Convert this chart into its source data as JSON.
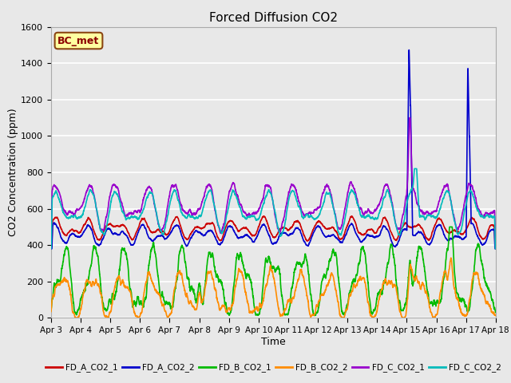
{
  "title": "Forced Diffusion CO2",
  "xlabel": "Time",
  "ylabel": "CO2 Concentration (ppm)",
  "ylim": [
    0,
    1600
  ],
  "yticks": [
    0,
    200,
    400,
    600,
    800,
    1000,
    1200,
    1400,
    1600
  ],
  "x_labels": [
    "Apr 3",
    "Apr 4",
    "Apr 5",
    "Apr 6",
    "Apr 7",
    "Apr 8",
    "Apr 9",
    "Apr 10",
    "Apr 11",
    "Apr 12",
    "Apr 13",
    "Apr 14",
    "Apr 15",
    "Apr 16",
    "Apr 17",
    "Apr 18"
  ],
  "annotation_text": "BC_met",
  "annotation_bbox_facecolor": "#FFFFA0",
  "annotation_bbox_edgecolor": "#8B4513",
  "annotation_text_color": "#8B0000",
  "series": [
    {
      "label": "FD_A_CO2_1",
      "color": "#CC0000",
      "lw": 1.2
    },
    {
      "label": "FD_A_CO2_2",
      "color": "#0000CC",
      "lw": 1.2
    },
    {
      "label": "FD_B_CO2_1",
      "color": "#00BB00",
      "lw": 1.2
    },
    {
      "label": "FD_B_CO2_2",
      "color": "#FF8C00",
      "lw": 1.2
    },
    {
      "label": "FD_C_CO2_1",
      "color": "#9900CC",
      "lw": 1.2
    },
    {
      "label": "FD_C_CO2_2",
      "color": "#00BBBB",
      "lw": 1.2
    }
  ],
  "background_color": "#E8E8E8",
  "grid_color": "#FFFFFF"
}
